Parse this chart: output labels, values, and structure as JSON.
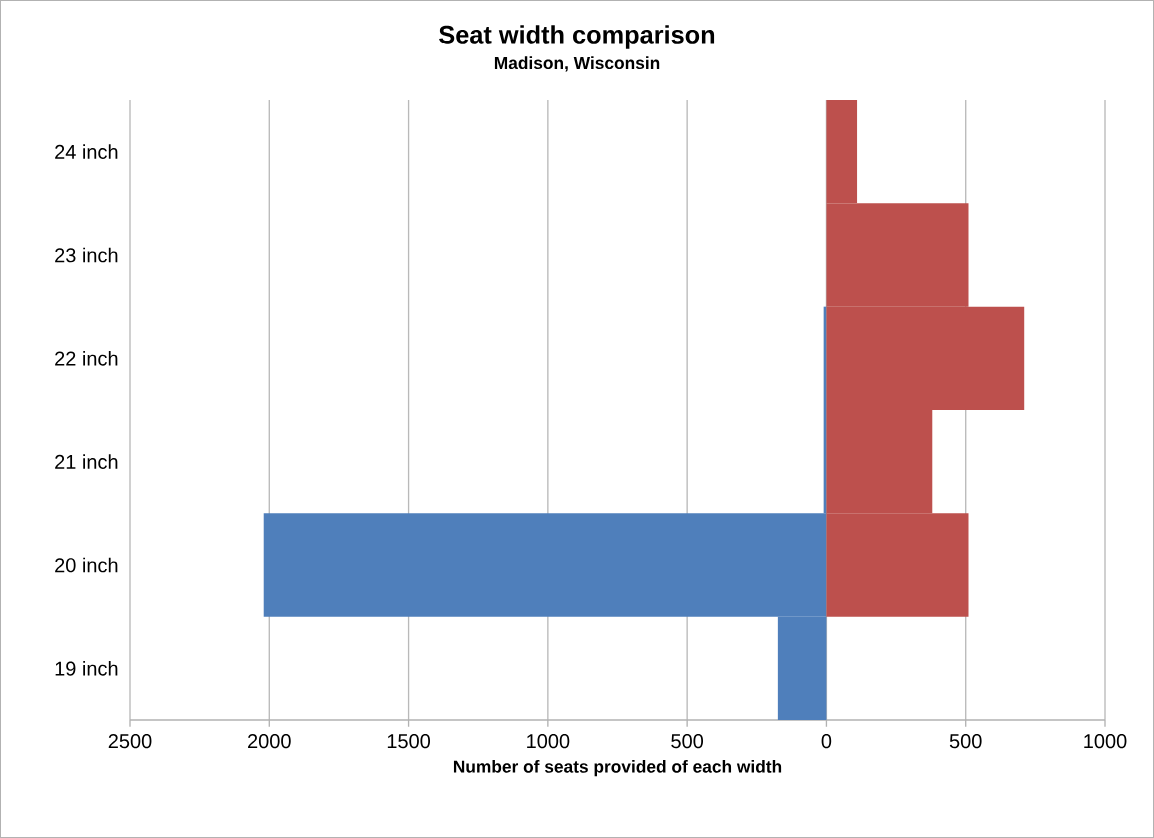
{
  "chart_data": {
    "type": "bar",
    "orientation": "horizontal",
    "title": "Seat width comparison",
    "subtitle": "Madison, Wisconsin",
    "xlabel": "Number of seats provided of each width",
    "categories": [
      "24 inch",
      "23 inch",
      "22 inch",
      "21 inch",
      "20 inch",
      "19 inch"
    ],
    "series": [
      {
        "color": "#4f7fbb",
        "values": [
          0,
          0,
          -10,
          -10,
          -2020,
          -175
        ]
      },
      {
        "color": "#bd504d",
        "values": [
          110,
          510,
          710,
          380,
          510,
          0
        ]
      }
    ],
    "xlim": [
      -2500,
      1000
    ],
    "xticks": [
      {
        "value": -2500,
        "label": "2500"
      },
      {
        "value": -2000,
        "label": "2000"
      },
      {
        "value": -1500,
        "label": "1500"
      },
      {
        "value": -1000,
        "label": "1000"
      },
      {
        "value": -500,
        "label": "500"
      },
      0,
      500,
      1000
    ],
    "grid": "x",
    "stacked": true
  }
}
